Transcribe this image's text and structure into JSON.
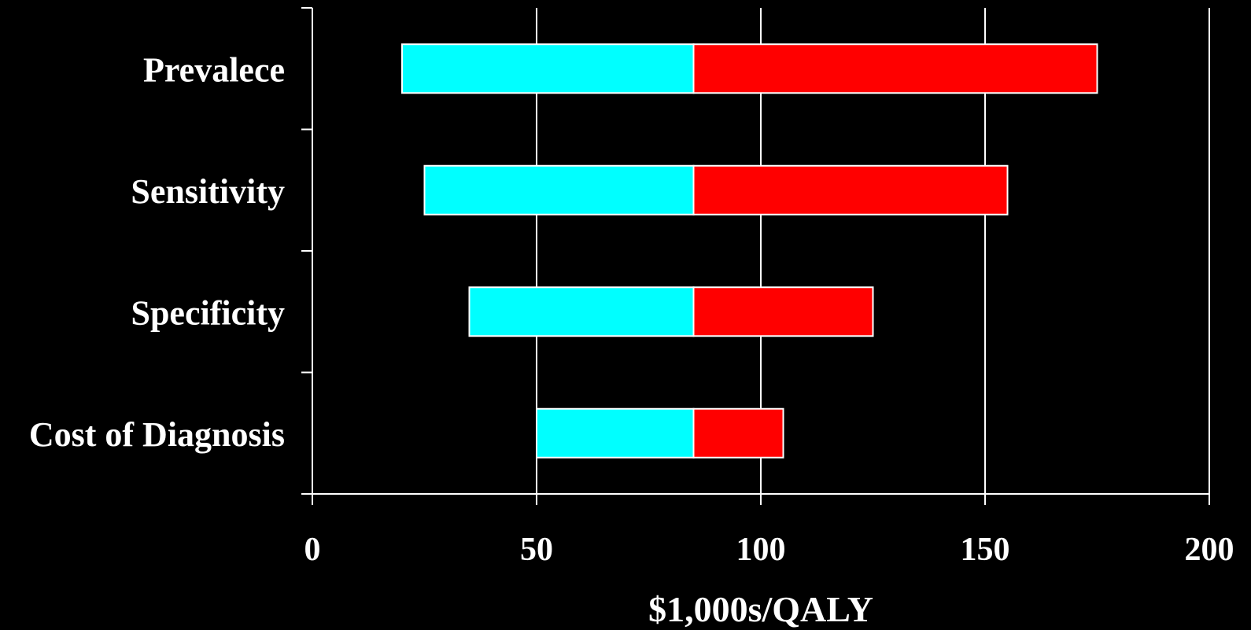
{
  "chart_data": {
    "type": "bar",
    "orientation": "horizontal",
    "style": "tornado",
    "categories": [
      "Prevalece",
      "Sensitivity",
      "Specificity",
      "Cost of Diagnosis"
    ],
    "base_value": 85,
    "series": [
      {
        "values": [
          20,
          25,
          35,
          50
        ],
        "color": "#00ffff"
      },
      {
        "values": [
          175,
          155,
          125,
          105
        ],
        "color": "#ff0000"
      }
    ],
    "xlabel": "$1,000s/QALY",
    "ylabel": "",
    "title": "",
    "xlim": [
      0,
      200
    ],
    "xticks": [
      0,
      50,
      100,
      150,
      200
    ],
    "grid": "vertical",
    "background": "#000000",
    "foreground": "#ffffff"
  }
}
